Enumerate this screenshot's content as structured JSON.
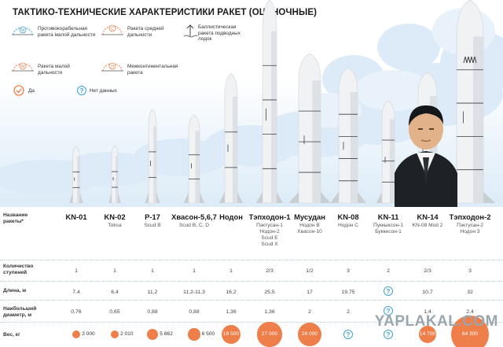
{
  "title": "ТАКТИКО-ТЕХНИЧЕСКИЕ ХАРАКТЕРИСТИКИ РАКЕТ (ОЦЕНОЧНЫЕ)",
  "legend": [
    {
      "id": "anti_ship",
      "icon": "anti-ship-missile-icon",
      "letter": "М",
      "label": "Противокорабельная\nракета малой дальности"
    },
    {
      "id": "medium",
      "icon": "medium-range-missile-icon",
      "letter": "С",
      "label": "Ракета средней\nдальности"
    },
    {
      "id": "submarine",
      "icon": "submarine-ballistic-missile-icon",
      "letter": "",
      "label": "Баллистическая\nракета подводных\nлодок"
    },
    {
      "id": "short",
      "icon": "short-range-missile-icon",
      "letter": "М",
      "label": "Ракета малой\nдальности"
    },
    {
      "id": "icbm",
      "icon": "intercontinental-missile-icon",
      "letter": "Н",
      "label": "Межконтинентальная\nракета"
    },
    {
      "id": "yes",
      "icon": "check-icon",
      "letter": "",
      "label": "Да"
    },
    {
      "id": "no_data",
      "icon": "question-icon",
      "letter": "?",
      "label": "Нет данных"
    }
  ],
  "colors": {
    "orange": "#ef7f4a",
    "blue": "#3fa2d6",
    "missile": "#f0f2f4",
    "shade": "#c9ced3"
  },
  "row_labels": {
    "name": "Название\nракеты*",
    "stages": "Количество\nступеней",
    "length": "Длина, м",
    "diameter": "Наибольший\nдиаметр, м",
    "weight": "Вес, кг"
  },
  "missiles": [
    {
      "name": "KN-01",
      "alt": "",
      "stages": "1",
      "length": "7,4",
      "diameter": "0,76",
      "weight": "3 000",
      "weight_value": 3000
    },
    {
      "name": "KN-02",
      "alt": "Toksa",
      "stages": "1",
      "length": "6,4",
      "diameter": "0,65",
      "weight": "2 010",
      "weight_value": 2010
    },
    {
      "name": "Р-17",
      "alt": "Scud B",
      "stages": "1",
      "length": "11,2",
      "diameter": "0,88",
      "weight": "5 862",
      "weight_value": 5862
    },
    {
      "name": "Хвасон-5,6,7",
      "alt": "Scud B, C, D",
      "stages": "1",
      "length": "11,2-11,3",
      "diameter": "0,88",
      "weight": "6 500",
      "weight_value": 6500
    },
    {
      "name": "Нодон",
      "alt": "",
      "stages": "1",
      "length": "16,2",
      "diameter": "1,36",
      "weight": "16 500",
      "weight_value": 16500
    },
    {
      "name": "Тэпходон-1",
      "alt": "Пэктусан-1\nНодон-2\nScud E\nScud X",
      "stages": "2/3",
      "length": "25,5",
      "diameter": "1,36",
      "weight": "27 000",
      "weight_value": 27000
    },
    {
      "name": "Мусудан",
      "alt": "Нодон В\nХвасон-10",
      "stages": "1/2",
      "length": "17",
      "diameter": "2",
      "weight": "26 000",
      "weight_value": 26000
    },
    {
      "name": "KN-08",
      "alt": "Нодон С",
      "stages": "3",
      "length": "19,75",
      "diameter": "2",
      "weight": "?",
      "weight_value": null
    },
    {
      "name": "KN-11",
      "alt": "Пуккыксон-1\nБуккесон-1",
      "stages": "2",
      "length": "?",
      "diameter": "?",
      "weight": "?",
      "weight_value": null
    },
    {
      "name": "KN-14",
      "alt": "KN-08 Mod 2",
      "stages": "2/3",
      "length": "10,7",
      "diameter": "1,4",
      "weight": "14 700",
      "weight_value": 14700
    },
    {
      "name": "Тэпходон-2",
      "alt": "Пэктусан-2\nНодон 3",
      "stages": "3",
      "length": "32",
      "diameter": "2,4",
      "weight": "64 300",
      "weight_value": 64300
    }
  ],
  "watermark": "YAPLAKAL.COM"
}
